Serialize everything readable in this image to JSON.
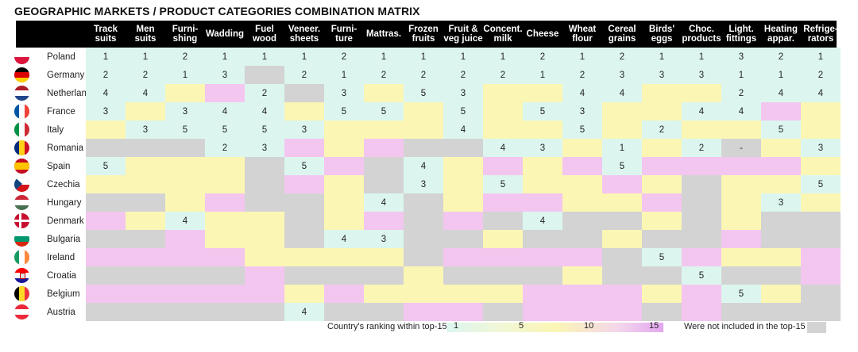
{
  "title": "GEOGRAPHIC MARKETS / PRODUCT CATEGORIES COMBINATION MATRIX",
  "legend": {
    "caption": "Country's ranking within top-15",
    "ticks": [
      "1",
      "5",
      "10",
      "15"
    ],
    "not_included": "Were not included in the top-15"
  },
  "colors": {
    "rank_1_5": "#dcf6ef",
    "rank_6_10": "#fbf6b4",
    "rank_11_15": "#f3c6ef",
    "not_included": "#d3d3d3",
    "header": "#000000"
  },
  "chart_data": {
    "type": "heatmap",
    "title": "GEOGRAPHIC MARKETS / PRODUCT CATEGORIES COMBINATION MATRIX",
    "columns": [
      [
        "Track",
        "suits"
      ],
      [
        "Men",
        "suits"
      ],
      [
        "Furni-",
        "shing"
      ],
      [
        "Wadding",
        ""
      ],
      [
        "Fuel",
        "wood"
      ],
      [
        "Veneer.",
        "sheets"
      ],
      [
        "Furni-",
        "ture"
      ],
      [
        "Mattras.",
        ""
      ],
      [
        "Frozen",
        "fruits"
      ],
      [
        "Fruit &",
        "veg juice"
      ],
      [
        "Concent.",
        "milk"
      ],
      [
        "Cheese",
        ""
      ],
      [
        "Wheat",
        "flour"
      ],
      [
        "Cereal",
        "grains"
      ],
      [
        "Birds'",
        "eggs"
      ],
      [
        "Choc.",
        "products"
      ],
      [
        "Light.",
        "fittings"
      ],
      [
        "Heating",
        "appar."
      ],
      [
        "Refrige-",
        "rators"
      ]
    ],
    "rows": [
      {
        "country": "Poland",
        "flag": "poland-flag-icon",
        "labels": [
          "1",
          "1",
          "2",
          "1",
          "1",
          "1",
          "2",
          "1",
          "1",
          "1",
          "1",
          "2",
          "1",
          "2",
          "1",
          "1",
          "3",
          "2",
          "1"
        ],
        "tiers": [
          "g",
          "g",
          "g",
          "g",
          "g",
          "g",
          "g",
          "g",
          "g",
          "g",
          "g",
          "g",
          "g",
          "g",
          "g",
          "g",
          "g",
          "g",
          "g"
        ]
      },
      {
        "country": "Germany",
        "flag": "germany-flag-icon",
        "labels": [
          "2",
          "2",
          "1",
          "3",
          "",
          "2",
          "1",
          "2",
          "2",
          "2",
          "2",
          "1",
          "2",
          "3",
          "3",
          "3",
          "1",
          "1",
          "2"
        ],
        "tiers": [
          "g",
          "g",
          "g",
          "g",
          "x",
          "g",
          "g",
          "g",
          "g",
          "g",
          "g",
          "g",
          "g",
          "g",
          "g",
          "g",
          "g",
          "g",
          "g"
        ]
      },
      {
        "country": "Netherlands",
        "flag": "netherlands-flag-icon",
        "labels": [
          "4",
          "4",
          "",
          "",
          "2",
          "",
          "3",
          "",
          "5",
          "3",
          "",
          "",
          "4",
          "4",
          "",
          "",
          "2",
          "4",
          "4"
        ],
        "tiers": [
          "g",
          "g",
          "y",
          "p",
          "g",
          "x",
          "g",
          "y",
          "g",
          "g",
          "y",
          "y",
          "g",
          "g",
          "y",
          "y",
          "g",
          "g",
          "g"
        ]
      },
      {
        "country": "France",
        "flag": "france-flag-icon",
        "labels": [
          "3",
          "",
          "3",
          "4",
          "4",
          "",
          "5",
          "5",
          "",
          "5",
          "",
          "5",
          "3",
          "",
          "",
          "4",
          "4",
          "",
          ""
        ],
        "tiers": [
          "g",
          "y",
          "g",
          "g",
          "g",
          "y",
          "g",
          "g",
          "y",
          "g",
          "y",
          "g",
          "g",
          "y",
          "y",
          "g",
          "g",
          "p",
          "y"
        ]
      },
      {
        "country": "Italy",
        "flag": "italy-flag-icon",
        "labels": [
          "",
          "3",
          "5",
          "5",
          "5",
          "3",
          "",
          "",
          "",
          "4",
          "",
          "",
          "5",
          "",
          "2",
          "",
          "",
          "5",
          ""
        ],
        "tiers": [
          "y",
          "g",
          "g",
          "g",
          "g",
          "g",
          "y",
          "y",
          "y",
          "g",
          "y",
          "y",
          "g",
          "y",
          "g",
          "y",
          "y",
          "g",
          "y"
        ]
      },
      {
        "country": "Romania",
        "flag": "romania-flag-icon",
        "labels": [
          "",
          "",
          "",
          "2",
          "3",
          "",
          "",
          "",
          "",
          "",
          "4",
          "3",
          "",
          "1",
          "",
          "2",
          "-",
          "",
          "3"
        ],
        "tiers": [
          "x",
          "x",
          "x",
          "g",
          "g",
          "p",
          "y",
          "p",
          "x",
          "x",
          "g",
          "g",
          "y",
          "g",
          "y",
          "g",
          "x",
          "y",
          "g"
        ]
      },
      {
        "country": "Spain",
        "flag": "spain-flag-icon",
        "labels": [
          "5",
          "",
          "",
          "",
          "",
          "5",
          "",
          "",
          "4",
          "",
          "",
          "",
          "",
          "5",
          "",
          "",
          "",
          "",
          ""
        ],
        "tiers": [
          "g",
          "y",
          "y",
          "y",
          "x",
          "g",
          "p",
          "x",
          "g",
          "y",
          "p",
          "y",
          "p",
          "g",
          "p",
          "p",
          "p",
          "p",
          "y"
        ]
      },
      {
        "country": "Czechia",
        "flag": "czechia-flag-icon",
        "labels": [
          "",
          "",
          "",
          "",
          "",
          "",
          "",
          "",
          "3",
          "",
          "5",
          "",
          "",
          "",
          "",
          "",
          "",
          "",
          "5"
        ],
        "tiers": [
          "y",
          "y",
          "y",
          "y",
          "x",
          "p",
          "y",
          "x",
          "g",
          "y",
          "g",
          "y",
          "y",
          "p",
          "y",
          "x",
          "y",
          "y",
          "g"
        ]
      },
      {
        "country": "Hungary",
        "flag": "hungary-flag-icon",
        "labels": [
          "",
          "",
          "",
          "",
          "",
          "",
          "",
          "4",
          "",
          "",
          "",
          "",
          "",
          "",
          "",
          "",
          "",
          "3",
          ""
        ],
        "tiers": [
          "x",
          "x",
          "y",
          "p",
          "x",
          "x",
          "y",
          "g",
          "x",
          "y",
          "p",
          "p",
          "y",
          "y",
          "p",
          "x",
          "y",
          "g",
          "y"
        ]
      },
      {
        "country": "Denmark",
        "flag": "denmark-flag-icon",
        "labels": [
          "",
          "",
          "4",
          "",
          "",
          "",
          "",
          "",
          "",
          "",
          "",
          "4",
          "",
          "",
          "",
          "",
          "",
          "",
          ""
        ],
        "tiers": [
          "p",
          "y",
          "g",
          "y",
          "y",
          "x",
          "y",
          "p",
          "x",
          "p",
          "x",
          "g",
          "x",
          "x",
          "y",
          "x",
          "y",
          "x",
          "x"
        ]
      },
      {
        "country": "Bulgaria",
        "flag": "bulgaria-flag-icon",
        "labels": [
          "",
          "",
          "",
          "",
          "",
          "",
          "4",
          "3",
          "",
          "",
          "",
          "",
          "",
          "",
          "",
          "",
          "",
          "",
          ""
        ],
        "tiers": [
          "x",
          "x",
          "p",
          "y",
          "y",
          "x",
          "g",
          "g",
          "x",
          "x",
          "y",
          "x",
          "x",
          "y",
          "x",
          "x",
          "p",
          "x",
          "x"
        ]
      },
      {
        "country": "Ireland",
        "flag": "ireland-flag-icon",
        "labels": [
          "",
          "",
          "",
          "",
          "",
          "",
          "",
          "",
          "",
          "",
          "",
          "",
          "",
          "",
          "5",
          "",
          "",
          "",
          ""
        ],
        "tiers": [
          "p",
          "p",
          "p",
          "p",
          "y",
          "y",
          "y",
          "y",
          "x",
          "p",
          "p",
          "p",
          "p",
          "x",
          "g",
          "p",
          "y",
          "y",
          "p"
        ]
      },
      {
        "country": "Croatia",
        "flag": "croatia-flag-icon",
        "labels": [
          "",
          "",
          "",
          "",
          "",
          "",
          "",
          "",
          "",
          "",
          "",
          "",
          "",
          "",
          "",
          "5",
          "",
          "",
          ""
        ],
        "tiers": [
          "x",
          "x",
          "x",
          "x",
          "p",
          "x",
          "x",
          "x",
          "y",
          "x",
          "x",
          "x",
          "y",
          "x",
          "x",
          "g",
          "x",
          "x",
          "p"
        ]
      },
      {
        "country": "Belgium",
        "flag": "belgium-flag-icon",
        "labels": [
          "",
          "",
          "",
          "",
          "",
          "",
          "",
          "",
          "",
          "",
          "",
          "",
          "",
          "",
          "",
          "",
          "5",
          "",
          ""
        ],
        "tiers": [
          "p",
          "p",
          "p",
          "p",
          "p",
          "y",
          "p",
          "y",
          "y",
          "y",
          "y",
          "p",
          "p",
          "p",
          "y",
          "p",
          "g",
          "y",
          "x"
        ]
      },
      {
        "country": "Austria",
        "flag": "austria-flag-icon",
        "labels": [
          "",
          "",
          "",
          "",
          "",
          "4",
          "",
          "",
          "",
          "",
          "",
          "",
          "",
          "",
          "",
          "",
          "",
          "",
          ""
        ],
        "tiers": [
          "x",
          "x",
          "x",
          "x",
          "x",
          "g",
          "x",
          "x",
          "p",
          "p",
          "x",
          "p",
          "p",
          "p",
          "x",
          "p",
          "x",
          "x",
          "x"
        ]
      }
    ]
  }
}
